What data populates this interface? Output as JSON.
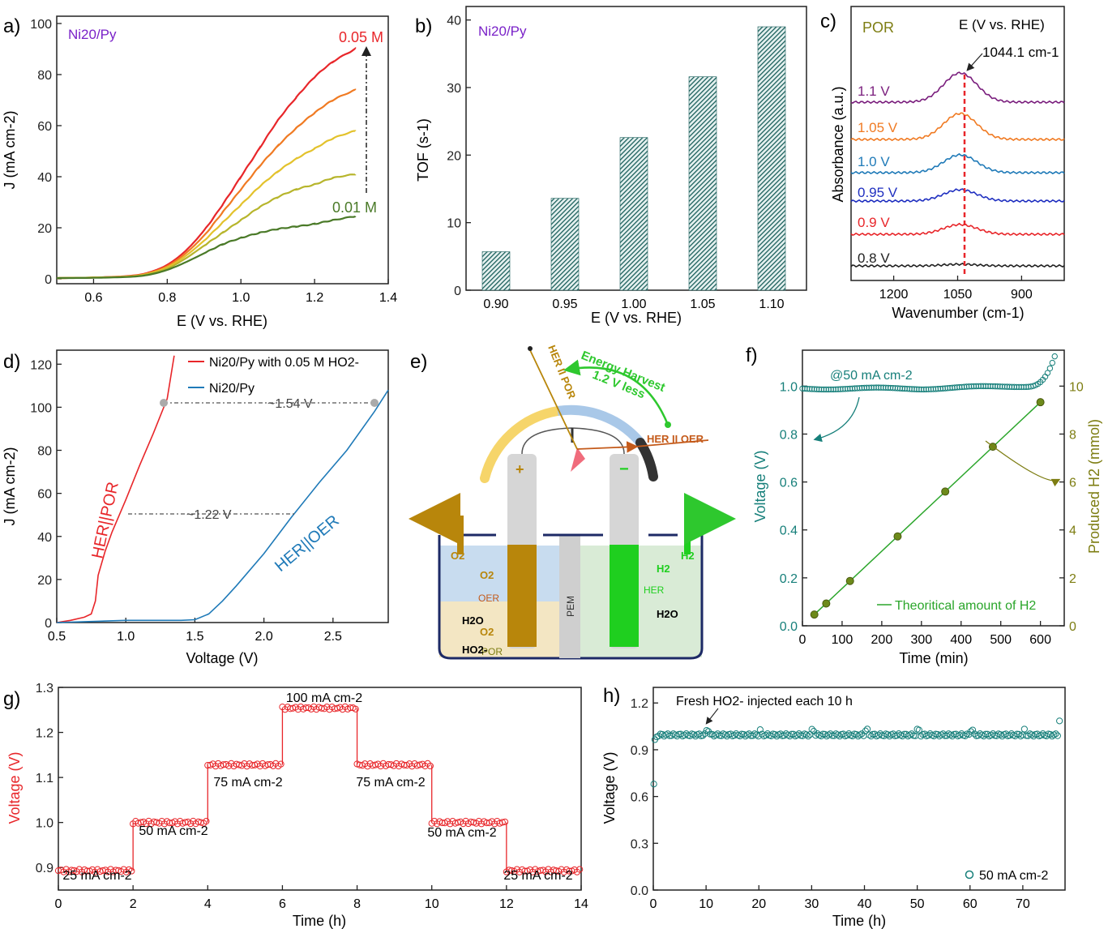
{
  "panel_labels": {
    "a": "a)",
    "b": "b)",
    "c": "c)",
    "d": "d)",
    "e": "e)",
    "f": "f)",
    "g": "g)",
    "h": "h)"
  },
  "colors": {
    "red": "#e8262a",
    "orange": "#f07a22",
    "yellow": "#e3c22c",
    "ygreen": "#b7b52c",
    "dgreen": "#4a7a28",
    "teal": "#167f7a",
    "olive": "#7d7d12",
    "purple": "#7a1e7d",
    "blue": "#1f7ab8",
    "navy": "#1f2fc0",
    "black": "#222222",
    "ngreen": "#2ec82e",
    "gold": "#b8860b",
    "rust": "#c45a1a",
    "lightblue": "#a9c8e8",
    "sand": "#f3e6c3"
  },
  "chart_data": [
    {
      "id": "a",
      "type": "line",
      "annotation": "Ni20/Py",
      "xlabel": "E (V vs. RHE)",
      "ylabel": "J (mA cm-2)",
      "xlim": [
        0.5,
        1.4
      ],
      "ylim": [
        0,
        100
      ],
      "xticks": [
        "0.6",
        "0.8",
        "1.0",
        "1.2",
        "1.4"
      ],
      "yticks": [
        "0",
        "20",
        "40",
        "60",
        "80",
        "100"
      ],
      "labels": {
        "top": "0.05 M",
        "bottom": "0.01 M"
      },
      "x": [
        0.5,
        0.6,
        0.7,
        0.75,
        0.8,
        0.85,
        0.9,
        0.95,
        1.0,
        1.05,
        1.1,
        1.15,
        1.2,
        1.25,
        1.31
      ],
      "series": [
        {
          "color": "red",
          "values": [
            0.3,
            0.5,
            1.2,
            2.5,
            5.5,
            11,
            19,
            29,
            40,
            51,
            62,
            71,
            79,
            85,
            90
          ]
        },
        {
          "color": "orange",
          "values": [
            0.3,
            0.5,
            1.1,
            2.3,
            5,
            10,
            17,
            26,
            35,
            44,
            52,
            59,
            65,
            70,
            74
          ]
        },
        {
          "color": "yellow",
          "values": [
            0.3,
            0.5,
            1,
            2.1,
            4.5,
            9,
            15,
            22,
            29,
            36,
            42,
            47,
            51,
            55,
            58
          ]
        },
        {
          "color": "ygreen",
          "values": [
            0.3,
            0.5,
            0.9,
            1.9,
            4,
            8,
            13,
            18,
            23,
            28,
            32,
            35,
            37,
            39.5,
            41
          ]
        },
        {
          "color": "dgreen",
          "values": [
            0.3,
            0.4,
            0.8,
            1.6,
            3.5,
            6.5,
            10,
            13.5,
            16,
            18,
            19.5,
            20.5,
            21.5,
            23,
            24.5
          ]
        }
      ]
    },
    {
      "id": "b",
      "type": "bar",
      "annotation": "Ni20/Py",
      "xlabel": "E (V vs. RHE)",
      "ylabel": "TOF (s-1)",
      "ylim": [
        0,
        42
      ],
      "yticks": [
        "0",
        "10",
        "20",
        "30",
        "40"
      ],
      "categories": [
        "0.90",
        "0.95",
        "1.00",
        "1.05",
        "1.10"
      ],
      "values": [
        5.7,
        13.6,
        22.6,
        31.6,
        39.0
      ]
    },
    {
      "id": "c",
      "type": "line",
      "title": "POR",
      "annotation": "E (V vs. RHE)",
      "peak_label": "1044.1 cm-1",
      "xlabel": "Wavenumber (cm-1)",
      "ylabel": "Absorbance (a.u.)",
      "xlim": [
        1300,
        800
      ],
      "xticks": [
        "1200",
        "1050",
        "900"
      ],
      "series": [
        {
          "name": "1.1 V",
          "color": "purple"
        },
        {
          "name": "1.05 V",
          "color": "orange"
        },
        {
          "name": "1.0 V",
          "color": "blue"
        },
        {
          "name": "0.95 V",
          "color": "navy"
        },
        {
          "name": "0.9 V",
          "color": "red"
        },
        {
          "name": "0.8 V",
          "color": "black"
        }
      ]
    },
    {
      "id": "d",
      "type": "line",
      "xlabel": "Voltage (V)",
      "ylabel": "J (mA cm-2)",
      "xlim": [
        0.5,
        2.9
      ],
      "ylim": [
        0,
        125
      ],
      "xticks": [
        "0.5",
        "1.0",
        "1.5",
        "2.0",
        "2.5"
      ],
      "yticks": [
        "0",
        "20",
        "40",
        "60",
        "80",
        "100",
        "120"
      ],
      "legend": [
        "Ni20/Py with 0.05 M HO2-",
        "Ni20/Py"
      ],
      "annotations": {
        "gap1": "~1.54 V",
        "gap2": "~1.22 V",
        "por": "HER||POR",
        "oer": "HER||OER"
      },
      "series": [
        {
          "color": "red",
          "x": [
            0.5,
            0.6,
            0.7,
            0.75,
            0.78,
            0.8,
            0.85,
            0.9,
            1.0,
            1.1,
            1.2,
            1.3,
            1.35
          ],
          "values": [
            0,
            1,
            2.5,
            4,
            10,
            22,
            33,
            42,
            57,
            73,
            88,
            104,
            124
          ]
        },
        {
          "color": "blue",
          "x": [
            0.5,
            0.8,
            1.0,
            1.2,
            1.4,
            1.5,
            1.6,
            1.7,
            1.8,
            2.0,
            2.2,
            2.4,
            2.6,
            2.8,
            2.9
          ],
          "values": [
            0,
            0.6,
            1,
            1,
            1,
            1.3,
            4,
            10,
            17,
            32,
            49,
            65,
            80,
            98,
            108
          ]
        }
      ]
    },
    {
      "id": "e",
      "type": "diagram",
      "labels": {
        "her_por": "HER II POR",
        "her_oer": "HER II OER",
        "energy": "Energy Harvest",
        "less": "1.2 V less",
        "plus": "+",
        "minus": "−",
        "o2": "O2",
        "h2": "H2",
        "pem": "PEM",
        "oer": "OER",
        "her": "HER",
        "por": "POR",
        "h2o": "H2O",
        "ho2": "HO2-"
      }
    },
    {
      "id": "f",
      "type": "scatter",
      "annotation": "@50 mA cm-2",
      "xlabel": "Time (min)",
      "ylabel": "Voltage (V)",
      "y2label": "Produced H2 (mmol)",
      "xlim": [
        0,
        660
      ],
      "ylim": [
        0,
        1.15
      ],
      "y2lim": [
        0,
        11.5
      ],
      "xticks": [
        "0",
        "100",
        "200",
        "300",
        "400",
        "500",
        "600"
      ],
      "yticks": [
        "0.0",
        "0.2",
        "0.4",
        "0.6",
        "0.8",
        "1.0"
      ],
      "y2ticks": [
        "0",
        "2",
        "4",
        "6",
        "8",
        "10"
      ],
      "legend": "Theoritical amount of H2",
      "h2_points": {
        "x": [
          30,
          60,
          120,
          240,
          360,
          480,
          600
        ],
        "values": [
          0.47,
          0.93,
          1.87,
          3.73,
          5.6,
          7.47,
          9.33
        ]
      }
    },
    {
      "id": "g",
      "type": "line",
      "xlabel": "Time (h)",
      "ylabel": "Voltage (V)",
      "xlim": [
        0,
        14
      ],
      "ylim": [
        0.85,
        1.3
      ],
      "xticks": [
        "0",
        "2",
        "4",
        "6",
        "8",
        "10",
        "12",
        "14"
      ],
      "yticks": [
        "0.9",
        "1.0",
        "1.1",
        "1.2",
        "1.3"
      ],
      "steps": [
        {
          "from": 0,
          "to": 2,
          "value": 0.893,
          "label": "25 mA cm-2"
        },
        {
          "from": 2,
          "to": 4,
          "value": 1.0,
          "label": "50 mA cm-2"
        },
        {
          "from": 4,
          "to": 6,
          "value": 1.128,
          "label": "75 mA cm-2"
        },
        {
          "from": 6,
          "to": 8,
          "value": 1.254,
          "label": "100 mA cm-2"
        },
        {
          "from": 8,
          "to": 10,
          "value": 1.128,
          "label": "75 mA cm-2"
        },
        {
          "from": 10,
          "to": 12,
          "value": 1.0,
          "label": "50 mA cm-2"
        },
        {
          "from": 12,
          "to": 14,
          "value": 0.893,
          "label": "25 mA cm-2"
        }
      ]
    },
    {
      "id": "h",
      "type": "scatter",
      "xlabel": "Time (h)",
      "ylabel": "Voltage (V)",
      "xlim": [
        0,
        78
      ],
      "ylim": [
        0,
        1.3
      ],
      "xticks": [
        "0",
        "10",
        "20",
        "30",
        "40",
        "50",
        "60",
        "70"
      ],
      "yticks": [
        "0.0",
        "0.3",
        "0.6",
        "0.9",
        "1.2"
      ],
      "annotation": "Fresh HO2- injected each 10 h",
      "legend": "50 mA cm-2"
    }
  ]
}
